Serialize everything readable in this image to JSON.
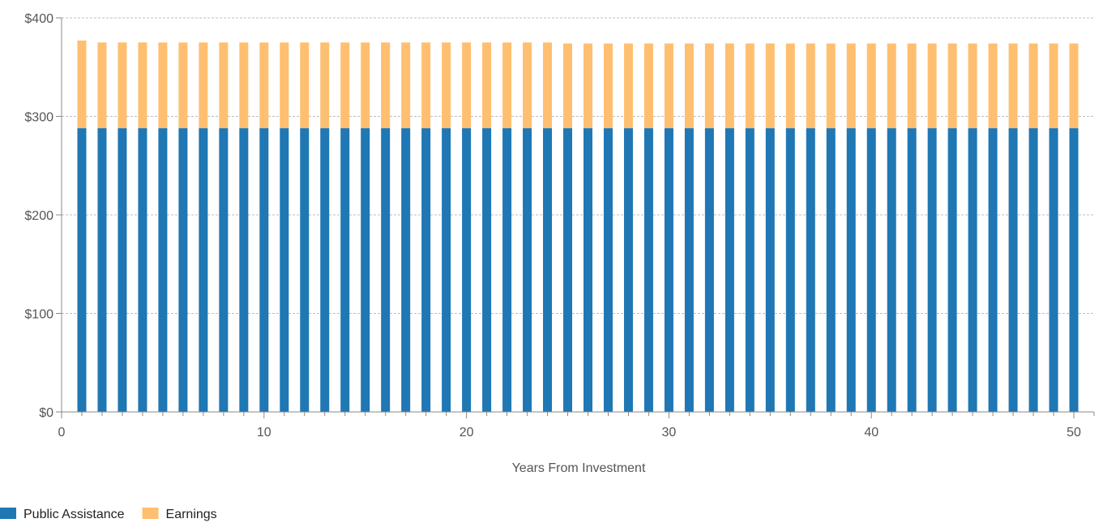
{
  "chart_data": {
    "type": "bar",
    "stacked": true,
    "title": "",
    "xlabel": "Years From Investment",
    "ylabel": "",
    "x": [
      1,
      2,
      3,
      4,
      5,
      6,
      7,
      8,
      9,
      10,
      11,
      12,
      13,
      14,
      15,
      16,
      17,
      18,
      19,
      20,
      21,
      22,
      23,
      24,
      25,
      26,
      27,
      28,
      29,
      30,
      31,
      32,
      33,
      34,
      35,
      36,
      37,
      38,
      39,
      40,
      41,
      42,
      43,
      44,
      45,
      46,
      47,
      48,
      49,
      50
    ],
    "xlim": [
      0,
      51
    ],
    "ylim": [
      0,
      400
    ],
    "x_ticks": [
      0,
      10,
      20,
      30,
      40,
      50
    ],
    "y_ticks": [
      0,
      100,
      200,
      300,
      400
    ],
    "y_tick_labels": [
      "$0",
      "$100",
      "$200",
      "$300",
      "$400"
    ],
    "grid": true,
    "legend_position": "bottom-left",
    "series": [
      {
        "name": "Public Assistance",
        "color": "#1f77b4",
        "values": [
          288,
          288,
          288,
          288,
          288,
          288,
          288,
          288,
          288,
          288,
          288,
          288,
          288,
          288,
          288,
          288,
          288,
          288,
          288,
          288,
          288,
          288,
          288,
          288,
          288,
          288,
          288,
          288,
          288,
          288,
          288,
          288,
          288,
          288,
          288,
          288,
          288,
          288,
          288,
          288,
          288,
          288,
          288,
          288,
          288,
          288,
          288,
          288,
          288,
          288
        ]
      },
      {
        "name": "Earnings",
        "color": "#ffbf70",
        "values": [
          89,
          87,
          87,
          87,
          87,
          87,
          87,
          87,
          87,
          87,
          87,
          87,
          87,
          87,
          87,
          87,
          87,
          87,
          87,
          87,
          87,
          87,
          87,
          87,
          86,
          86,
          86,
          86,
          86,
          86,
          86,
          86,
          86,
          86,
          86,
          86,
          86,
          86,
          86,
          86,
          86,
          86,
          86,
          86,
          86,
          86,
          86,
          86,
          86,
          86
        ]
      }
    ]
  }
}
